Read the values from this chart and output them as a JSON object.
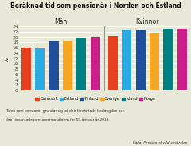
{
  "title": "Beräknad tid som pensionär i Norden och Estland",
  "group_labels": [
    "Män",
    "Kvinnor"
  ],
  "countries": [
    "Danmark",
    "Estland",
    "Finland",
    "Sverige",
    "Island",
    "Norge"
  ],
  "colors": [
    "#e8401c",
    "#29abe2",
    "#1f4e9b",
    "#f5a623",
    "#008080",
    "#cc1f8a"
  ],
  "men_values": [
    16.0,
    15.8,
    18.5,
    18.5,
    19.5,
    20.0
  ],
  "women_values": [
    20.5,
    22.5,
    22.5,
    21.5,
    23.0,
    23.0
  ],
  "ylabel": "År",
  "ylim": [
    0,
    24
  ],
  "yticks": [
    0,
    2,
    4,
    6,
    8,
    10,
    12,
    14,
    16,
    18,
    20,
    22,
    24
  ],
  "footnote1": "Tiden som pensionär grundar sig på den förväntade livslängden och",
  "footnote2": "den förväntade pensioneringsåldern för 50-åringar år 2019.",
  "source": "Källa: Pensionsskyddscentralen",
  "background_color": "#e8e8d8",
  "grid_color": "#ffffff",
  "bar_width": 0.7
}
